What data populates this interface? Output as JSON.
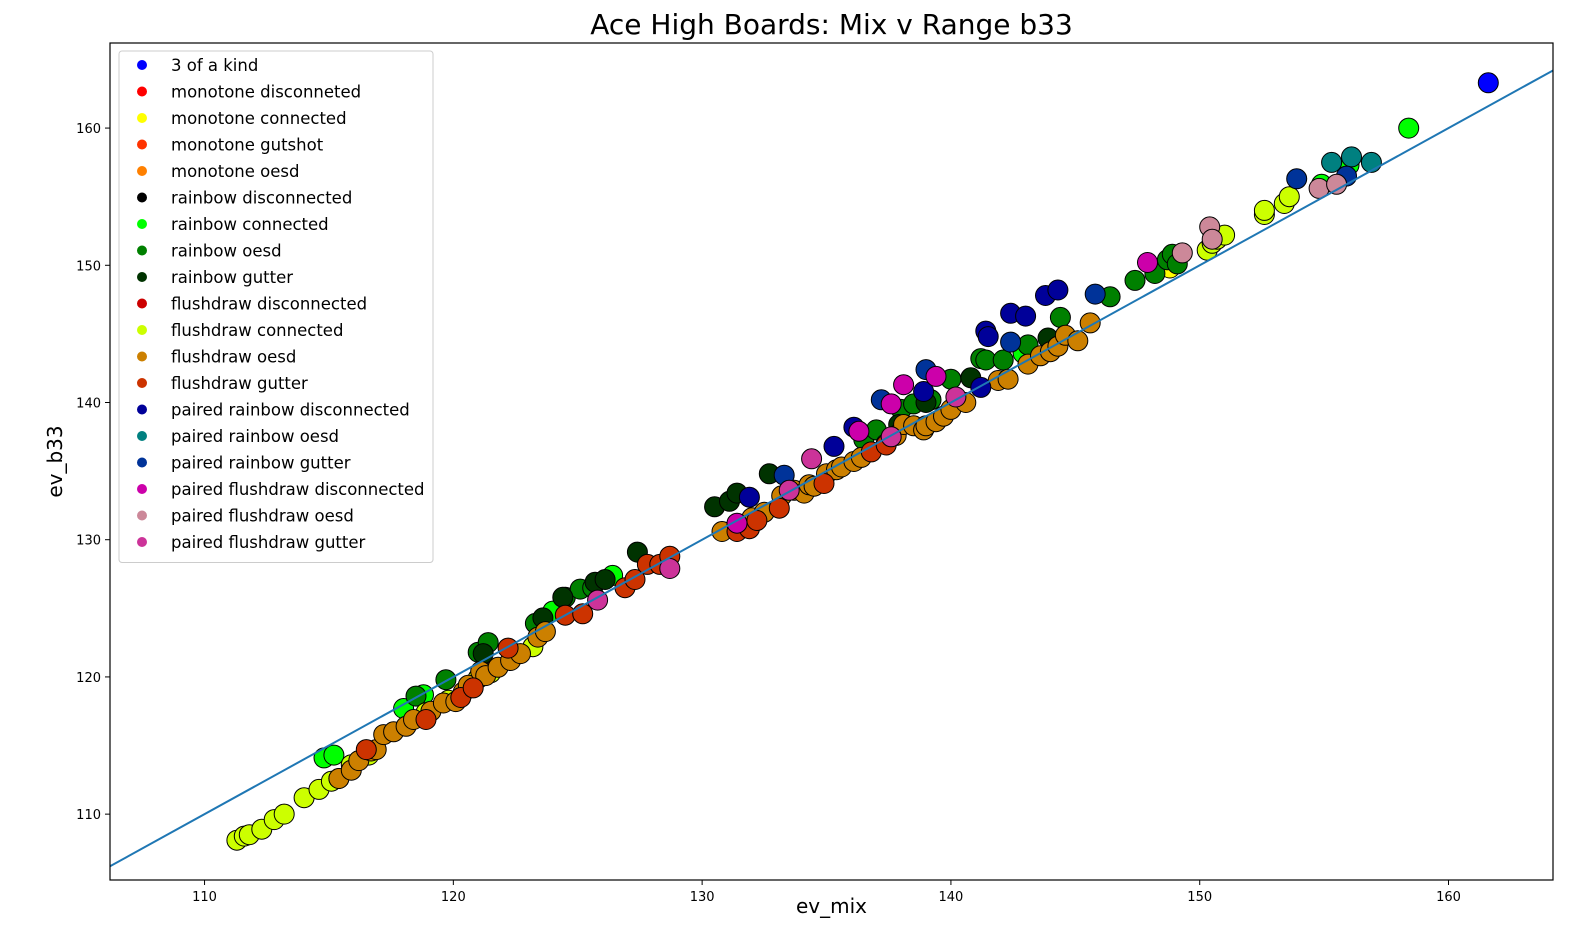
{
  "chart_data": {
    "type": "scatter",
    "title": "Ace High Boards: Mix v Range b33",
    "xlabel": "ev_mix",
    "ylabel": "ev_b33",
    "xlim": [
      106.2,
      164.2
    ],
    "ylim": [
      105.2,
      166.2
    ],
    "xticks": [
      110,
      120,
      130,
      140,
      150,
      160
    ],
    "yticks": [
      110,
      120,
      130,
      140,
      150,
      160
    ],
    "grid": false,
    "legend_position": "upper-left",
    "reference_line": {
      "x": [
        106.2,
        164.2
      ],
      "y": [
        106.2,
        164.2
      ],
      "color": "#1f77b4"
    },
    "series": [
      {
        "name": "3 of a kind",
        "color": "#0000ff",
        "points": [
          [
            161.6,
            163.3
          ]
        ]
      },
      {
        "name": "monotone disconneted",
        "color": "#ff0000",
        "points": []
      },
      {
        "name": "monotone connected",
        "color": "#ffff00",
        "points": [
          [
            148.8,
            149.8
          ]
        ]
      },
      {
        "name": "monotone gutshot",
        "color": "#ff3300",
        "points": []
      },
      {
        "name": "monotone oesd",
        "color": "#ff8000",
        "points": []
      },
      {
        "name": "rainbow disconnected",
        "color": "#000000",
        "points": []
      },
      {
        "name": "rainbow connected",
        "color": "#00ff00",
        "points": [
          [
            114.8,
            114.1
          ],
          [
            115.2,
            114.3
          ],
          [
            118.0,
            117.7
          ],
          [
            118.8,
            118.7
          ],
          [
            124.0,
            124.8
          ],
          [
            126.4,
            127.4
          ],
          [
            142.9,
            143.6
          ],
          [
            154.9,
            155.9
          ],
          [
            156.0,
            157.3
          ],
          [
            158.4,
            160.0
          ]
        ]
      },
      {
        "name": "rainbow oesd",
        "color": "#008000",
        "points": [
          [
            118.5,
            118.6
          ],
          [
            119.7,
            119.8
          ],
          [
            121.0,
            121.8
          ],
          [
            121.4,
            122.5
          ],
          [
            123.3,
            123.9
          ],
          [
            124.5,
            125.8
          ],
          [
            125.1,
            126.4
          ],
          [
            125.6,
            126.5
          ],
          [
            136.5,
            137.3
          ],
          [
            137.0,
            138.0
          ],
          [
            138.0,
            139.5
          ],
          [
            138.5,
            139.9
          ],
          [
            139.2,
            140.2
          ],
          [
            140.0,
            141.7
          ],
          [
            141.2,
            143.2
          ],
          [
            141.4,
            143.1
          ],
          [
            142.1,
            143.1
          ],
          [
            143.1,
            144.2
          ],
          [
            144.4,
            146.2
          ],
          [
            146.4,
            147.7
          ],
          [
            147.4,
            148.9
          ],
          [
            148.2,
            149.4
          ],
          [
            148.7,
            150.4
          ],
          [
            148.9,
            150.8
          ],
          [
            149.1,
            150.1
          ]
        ]
      },
      {
        "name": "rainbow gutter",
        "color": "#003300",
        "points": [
          [
            121.2,
            121.7
          ],
          [
            123.6,
            124.3
          ],
          [
            124.4,
            125.8
          ],
          [
            125.7,
            126.9
          ],
          [
            126.1,
            127.1
          ],
          [
            127.4,
            129.1
          ],
          [
            130.5,
            132.4
          ],
          [
            131.1,
            132.8
          ],
          [
            131.4,
            133.4
          ],
          [
            132.7,
            134.8
          ],
          [
            137.9,
            138.4
          ],
          [
            139.0,
            140.0
          ],
          [
            140.8,
            141.8
          ],
          [
            143.9,
            144.7
          ]
        ]
      },
      {
        "name": "flushdraw disconnected",
        "color": "#cc0000",
        "points": []
      },
      {
        "name": "flushdraw connected",
        "color": "#ccff00",
        "points": [
          [
            111.3,
            108.1
          ],
          [
            111.6,
            108.4
          ],
          [
            111.8,
            108.5
          ],
          [
            112.3,
            108.9
          ],
          [
            112.8,
            109.6
          ],
          [
            113.2,
            110.0
          ],
          [
            114.0,
            111.2
          ],
          [
            114.6,
            111.8
          ],
          [
            115.1,
            112.4
          ],
          [
            115.4,
            112.6
          ],
          [
            115.9,
            113.6
          ],
          [
            116.6,
            114.3
          ],
          [
            118.9,
            117.4
          ],
          [
            119.8,
            118.3
          ],
          [
            121.0,
            119.9
          ],
          [
            121.5,
            120.3
          ],
          [
            123.2,
            122.2
          ],
          [
            150.3,
            151.1
          ],
          [
            150.5,
            151.6
          ],
          [
            150.7,
            151.9
          ],
          [
            151.0,
            152.2
          ],
          [
            152.6,
            153.7
          ],
          [
            152.6,
            154.0
          ],
          [
            153.4,
            154.5
          ],
          [
            153.6,
            155.0
          ]
        ]
      },
      {
        "name": "flushdraw oesd",
        "color": "#cc8000",
        "points": [
          [
            115.4,
            112.6
          ],
          [
            115.9,
            113.2
          ],
          [
            116.2,
            113.9
          ],
          [
            116.7,
            114.6
          ],
          [
            116.9,
            114.7
          ],
          [
            117.2,
            115.8
          ],
          [
            117.6,
            116.0
          ],
          [
            118.1,
            116.4
          ],
          [
            118.4,
            116.9
          ],
          [
            119.1,
            117.5
          ],
          [
            119.6,
            118.1
          ],
          [
            120.1,
            118.2
          ],
          [
            120.4,
            118.9
          ],
          [
            120.6,
            119.4
          ],
          [
            121.1,
            120.4
          ],
          [
            121.3,
            120.1
          ],
          [
            121.8,
            120.7
          ],
          [
            122.3,
            121.2
          ],
          [
            122.7,
            121.7
          ],
          [
            123.4,
            122.9
          ],
          [
            123.7,
            123.3
          ],
          [
            130.8,
            130.6
          ],
          [
            131.4,
            131.1
          ],
          [
            132.0,
            131.6
          ],
          [
            132.5,
            132.0
          ],
          [
            133.2,
            133.2
          ],
          [
            133.7,
            133.6
          ],
          [
            134.1,
            133.4
          ],
          [
            134.3,
            134.0
          ],
          [
            134.5,
            133.9
          ],
          [
            135.0,
            134.8
          ],
          [
            135.4,
            135.1
          ],
          [
            135.6,
            135.3
          ],
          [
            136.1,
            135.7
          ],
          [
            136.4,
            136.0
          ],
          [
            137.4,
            137.0
          ],
          [
            137.8,
            137.6
          ],
          [
            138.1,
            138.4
          ],
          [
            138.5,
            138.3
          ],
          [
            138.9,
            138.0
          ],
          [
            139.0,
            138.3
          ],
          [
            139.4,
            138.6
          ],
          [
            139.7,
            139.0
          ],
          [
            140.0,
            139.5
          ],
          [
            140.6,
            140.0
          ],
          [
            141.9,
            141.6
          ],
          [
            142.3,
            141.7
          ],
          [
            143.1,
            142.8
          ],
          [
            143.6,
            143.4
          ],
          [
            144.0,
            143.7
          ],
          [
            144.3,
            144.1
          ],
          [
            144.6,
            144.9
          ],
          [
            145.1,
            144.5
          ],
          [
            145.6,
            145.8
          ]
        ]
      },
      {
        "name": "flushdraw gutter",
        "color": "#cc3300",
        "points": [
          [
            116.5,
            114.7
          ],
          [
            118.9,
            116.9
          ],
          [
            120.3,
            118.5
          ],
          [
            120.8,
            119.2
          ],
          [
            122.2,
            122.1
          ],
          [
            124.5,
            124.5
          ],
          [
            125.2,
            124.6
          ],
          [
            126.9,
            126.5
          ],
          [
            127.3,
            127.1
          ],
          [
            127.8,
            128.2
          ],
          [
            128.3,
            128.2
          ],
          [
            128.7,
            128.8
          ],
          [
            131.4,
            130.6
          ],
          [
            131.9,
            130.8
          ],
          [
            132.2,
            131.4
          ],
          [
            133.1,
            132.3
          ],
          [
            134.9,
            134.1
          ],
          [
            136.8,
            136.4
          ],
          [
            137.4,
            136.9
          ]
        ]
      },
      {
        "name": "paired rainbow disconnected",
        "color": "#000099",
        "points": [
          [
            131.9,
            133.1
          ],
          [
            135.3,
            136.8
          ],
          [
            136.1,
            138.2
          ],
          [
            138.9,
            140.8
          ],
          [
            141.2,
            141.1
          ],
          [
            141.4,
            145.2
          ],
          [
            141.5,
            144.8
          ],
          [
            142.4,
            146.5
          ],
          [
            143.0,
            146.3
          ],
          [
            143.8,
            147.8
          ],
          [
            144.3,
            148.2
          ]
        ]
      },
      {
        "name": "paired rainbow oesd",
        "color": "#008080",
        "points": [
          [
            155.3,
            157.5
          ],
          [
            156.1,
            157.9
          ],
          [
            156.9,
            157.5
          ]
        ]
      },
      {
        "name": "paired rainbow gutter",
        "color": "#003399",
        "points": [
          [
            133.3,
            134.7
          ],
          [
            137.2,
            140.2
          ],
          [
            139.0,
            142.4
          ],
          [
            142.4,
            144.4
          ],
          [
            145.8,
            147.9
          ],
          [
            153.9,
            156.3
          ],
          [
            155.9,
            156.5
          ]
        ]
      },
      {
        "name": "paired flushdraw disconnected",
        "color": "#cc00aa",
        "points": [
          [
            131.4,
            131.2
          ],
          [
            136.3,
            137.9
          ],
          [
            137.6,
            139.9
          ],
          [
            138.1,
            141.3
          ],
          [
            139.4,
            141.9
          ],
          [
            147.9,
            150.2
          ]
        ]
      },
      {
        "name": "paired flushdraw oesd",
        "color": "#cc8899",
        "points": [
          [
            149.3,
            150.9
          ],
          [
            150.4,
            152.8
          ],
          [
            150.5,
            151.9
          ],
          [
            154.8,
            155.6
          ],
          [
            155.5,
            155.9
          ]
        ]
      },
      {
        "name": "paired flushdraw gutter",
        "color": "#cc3399",
        "points": [
          [
            125.8,
            125.6
          ],
          [
            128.7,
            127.9
          ],
          [
            133.5,
            133.6
          ],
          [
            134.4,
            135.9
          ],
          [
            137.6,
            137.5
          ],
          [
            140.2,
            140.4
          ]
        ]
      }
    ]
  }
}
